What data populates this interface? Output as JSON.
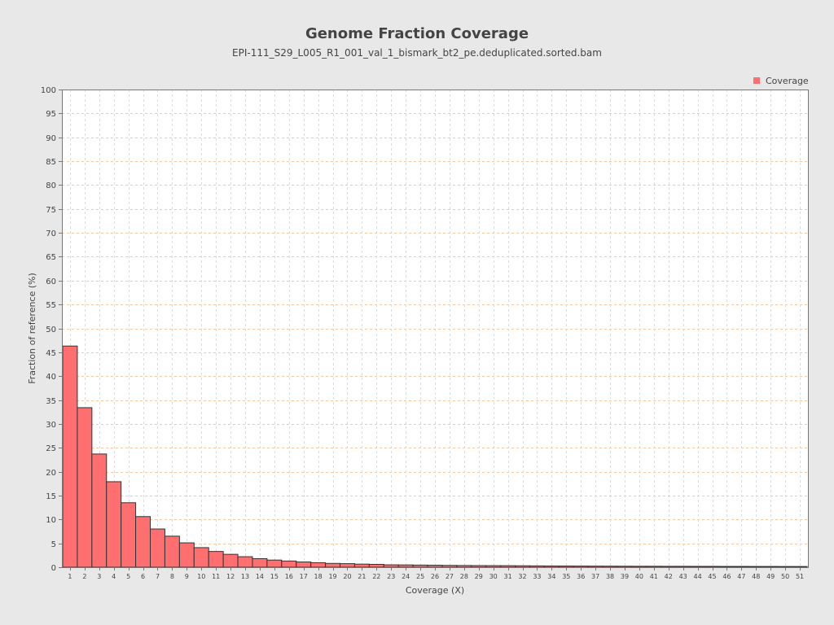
{
  "chart_data": {
    "type": "bar",
    "title": "Genome Fraction Coverage",
    "subtitle": "EPI-111_S29_L005_R1_001_val_1_bismark_bt2_pe.deduplicated.sorted.bam",
    "xlabel": "Coverage (X)",
    "ylabel": "Fraction of reference (%)",
    "ylim": [
      0,
      100
    ],
    "yticks": [
      0,
      5,
      10,
      15,
      20,
      25,
      30,
      35,
      40,
      45,
      50,
      55,
      60,
      65,
      70,
      75,
      80,
      85,
      90,
      95,
      100
    ],
    "grid": true,
    "legend_position": "top-right",
    "categories": [
      "1",
      "2",
      "3",
      "4",
      "5",
      "6",
      "7",
      "8",
      "9",
      "10",
      "11",
      "12",
      "13",
      "14",
      "15",
      "16",
      "17",
      "18",
      "19",
      "20",
      "21",
      "22",
      "23",
      "24",
      "25",
      "26",
      "27",
      "28",
      "29",
      "30",
      "31",
      "32",
      "33",
      "34",
      "35",
      "36",
      "37",
      "38",
      "39",
      "40",
      "41",
      "42",
      "43",
      "44",
      "45",
      "46",
      "47",
      "48",
      "49",
      "50",
      "51"
    ],
    "series": [
      {
        "name": "Coverage",
        "color": "#ff6f6f",
        "values": [
          46.3,
          33.4,
          23.7,
          17.9,
          13.5,
          10.6,
          8.0,
          6.5,
          5.1,
          4.1,
          3.3,
          2.7,
          2.2,
          1.8,
          1.5,
          1.3,
          1.1,
          0.95,
          0.8,
          0.75,
          0.65,
          0.6,
          0.5,
          0.48,
          0.45,
          0.42,
          0.38,
          0.36,
          0.34,
          0.33,
          0.32,
          0.3,
          0.28,
          0.26,
          0.25,
          0.24,
          0.23,
          0.22,
          0.21,
          0.2,
          0.2,
          0.19,
          0.19,
          0.18,
          0.18,
          0.17,
          0.17,
          0.16,
          0.16,
          0.15,
          0.15
        ]
      }
    ]
  }
}
